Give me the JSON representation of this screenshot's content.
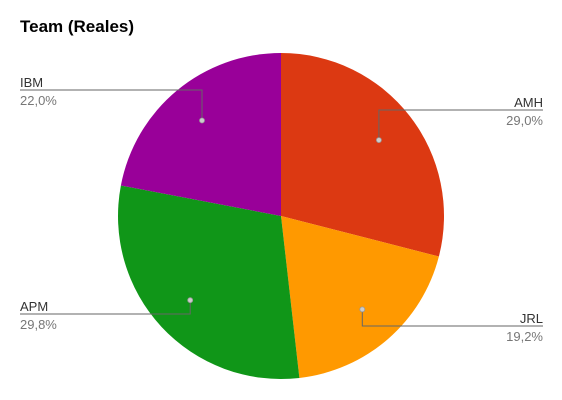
{
  "chart_data": {
    "type": "pie",
    "title": "Team (Reales)",
    "slices": [
      {
        "label": "AMH",
        "value": 29.0,
        "display": "29,0%",
        "color": "#dc3912"
      },
      {
        "label": "JRL",
        "value": 19.2,
        "display": "19,2%",
        "color": "#ff9900"
      },
      {
        "label": "APM",
        "value": 29.8,
        "display": "29,8%",
        "color": "#109618"
      },
      {
        "label": "IBM",
        "value": 22.0,
        "display": "22,0%",
        "color": "#990099"
      }
    ],
    "legend": "none"
  }
}
